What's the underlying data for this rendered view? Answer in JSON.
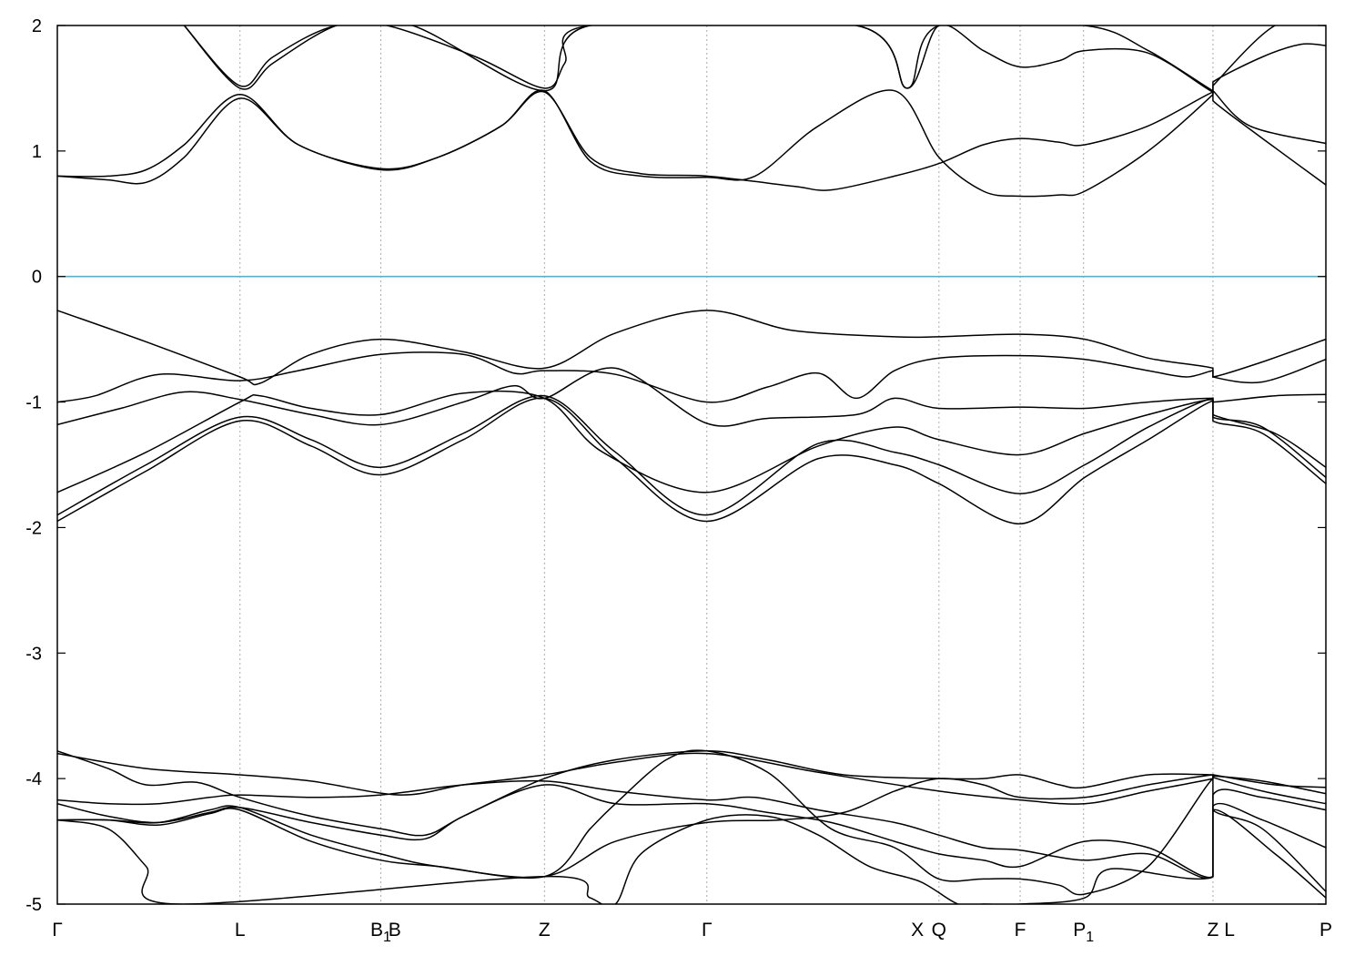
{
  "chart_data": {
    "type": "line",
    "title": "",
    "xlabel": "",
    "ylabel": "",
    "ylim": [
      -5,
      2
    ],
    "yticks": [
      "2",
      "1",
      "0",
      "-1",
      "-2",
      "-3",
      "-4",
      "-5"
    ],
    "xlim": [
      0,
      10
    ],
    "kpath": [
      {
        "label": "Γ",
        "sub": "",
        "x": 0.0,
        "line": false
      },
      {
        "label": "L",
        "sub": "",
        "x": 1.44,
        "line": true
      },
      {
        "label": "B",
        "sub": "1",
        "x": 2.55,
        "line": true
      },
      {
        "label": "B",
        "sub": "",
        "x": 2.66,
        "line": false
      },
      {
        "label": "Z",
        "sub": "",
        "x": 3.84,
        "line": true
      },
      {
        "label": "Γ",
        "sub": "",
        "x": 5.12,
        "line": true
      },
      {
        "label": "X",
        "sub": "",
        "x": 6.78,
        "line": false
      },
      {
        "label": "Q",
        "sub": "",
        "x": 6.95,
        "line": true
      },
      {
        "label": "F",
        "sub": "",
        "x": 7.59,
        "line": true
      },
      {
        "label": "P",
        "sub": "1",
        "x": 8.09,
        "line": true
      },
      {
        "label": "Z",
        "sub": "",
        "x": 9.11,
        "line": true
      },
      {
        "label": "L",
        "sub": "",
        "x": 9.24,
        "line": false
      },
      {
        "label": "P",
        "sub": "",
        "x": 10.0,
        "line": false
      }
    ],
    "fermi_level": 0,
    "colors": {
      "bands": "#000000",
      "fermi": "#5aaec8",
      "kline": "#aaaaaa"
    },
    "series": [
      {
        "band": "c1",
        "x": [
          0,
          0.4,
          0.7,
          1.0,
          1.44,
          1.9,
          2.55,
          3.0,
          3.5,
          3.84,
          4.2,
          4.6,
          5.12,
          5.8,
          6.1,
          6.6,
          6.95,
          7.3,
          7.59,
          7.9,
          8.1,
          8.6,
          9.11,
          9.11,
          9.5,
          10.0
        ],
        "y": [
          0.8,
          0.77,
          0.75,
          0.95,
          1.42,
          1.05,
          0.85,
          0.95,
          1.2,
          1.47,
          0.95,
          0.82,
          0.8,
          0.72,
          0.69,
          0.8,
          0.9,
          1.05,
          1.1,
          1.07,
          1.05,
          1.2,
          1.47,
          1.4,
          1.1,
          0.73
        ]
      },
      {
        "band": "c2",
        "x": [
          0,
          0.4,
          0.7,
          1.0,
          1.44,
          1.9,
          2.55,
          3.0,
          3.5,
          3.84,
          4.2,
          4.6,
          5.12,
          5.5,
          6.0,
          6.6,
          6.95,
          7.3,
          7.59,
          7.9,
          8.1,
          8.6,
          9.11,
          9.11,
          9.4,
          10.0
        ],
        "y": [
          0.8,
          0.8,
          0.85,
          1.05,
          1.45,
          1.05,
          0.86,
          0.95,
          1.2,
          1.48,
          0.92,
          0.8,
          0.79,
          0.8,
          1.2,
          1.48,
          0.95,
          0.68,
          0.64,
          0.65,
          0.68,
          1.0,
          1.45,
          1.48,
          1.2,
          1.06
        ]
      },
      {
        "band": "c3",
        "x": [
          1.0,
          1.44,
          1.7,
          2.2,
          2.6,
          3.3,
          3.84,
          4.0,
          4.2,
          6.3,
          6.7,
          6.95,
          7.3,
          7.59,
          7.9,
          8.1,
          8.6,
          9.11,
          9.11,
          9.5,
          9.8,
          10.0
        ],
        "y": [
          2.0,
          1.5,
          1.7,
          2.0,
          2.0,
          1.75,
          1.5,
          1.7,
          2.0,
          2.0,
          1.5,
          2.0,
          1.8,
          1.67,
          1.72,
          1.8,
          1.78,
          1.47,
          1.55,
          1.75,
          1.85,
          1.84
        ]
      },
      {
        "band": "c4",
        "x": [
          1.0,
          1.44,
          1.7,
          2.2,
          2.8,
          3.84,
          4.2,
          6.3,
          6.7,
          6.95,
          8.1,
          8.6,
          9.11,
          9.11,
          9.6,
          10.0
        ],
        "y": [
          2.0,
          1.52,
          1.75,
          2.0,
          2.0,
          1.48,
          2.0,
          2.0,
          1.5,
          2.0,
          2.0,
          1.8,
          1.48,
          1.52,
          2.0,
          2.0
        ]
      },
      {
        "band": "v1",
        "x": [
          0,
          0.7,
          1.44,
          1.6,
          2.0,
          2.55,
          3.2,
          3.84,
          4.4,
          5.12,
          5.8,
          6.6,
          6.95,
          7.59,
          8.1,
          8.6,
          9.11,
          9.11,
          9.5,
          10.0
        ],
        "y": [
          -0.27,
          -0.52,
          -0.8,
          -0.85,
          -0.62,
          -0.5,
          -0.6,
          -0.73,
          -0.45,
          -0.27,
          -0.43,
          -0.48,
          -0.48,
          -0.46,
          -0.5,
          -0.65,
          -0.73,
          -0.8,
          -0.68,
          -0.5
        ]
      },
      {
        "band": "v2",
        "x": [
          0,
          0.3,
          0.8,
          1.44,
          1.9,
          2.55,
          3.2,
          3.6,
          3.84,
          4.4,
          5.12,
          5.6,
          6.0,
          6.3,
          6.6,
          6.95,
          7.59,
          8.1,
          8.6,
          8.9,
          9.11,
          9.11,
          9.5,
          10.0
        ],
        "y": [
          -1.0,
          -0.95,
          -0.78,
          -0.83,
          -0.75,
          -0.62,
          -0.62,
          -0.77,
          -0.75,
          -0.78,
          -1.0,
          -0.88,
          -0.77,
          -0.97,
          -0.75,
          -0.65,
          -0.63,
          -0.66,
          -0.75,
          -0.8,
          -0.75,
          -0.8,
          -0.84,
          -0.66
        ]
      },
      {
        "band": "v3",
        "x": [
          0,
          0.5,
          1.0,
          1.44,
          2.0,
          2.55,
          3.2,
          3.6,
          3.84,
          4.4,
          5.12,
          5.6,
          6.3,
          6.6,
          6.95,
          7.59,
          8.1,
          8.6,
          9.11,
          9.11,
          9.6,
          10.0
        ],
        "y": [
          -1.18,
          -1.05,
          -0.92,
          -0.98,
          -1.1,
          -1.18,
          -1.0,
          -0.87,
          -0.97,
          -0.73,
          -1.17,
          -1.13,
          -1.1,
          -0.97,
          -1.05,
          -1.04,
          -1.05,
          -1.0,
          -0.97,
          -1.0,
          -0.95,
          -0.94
        ]
      },
      {
        "band": "v4",
        "x": [
          0,
          0.7,
          1.44,
          1.6,
          2.0,
          2.55,
          3.2,
          3.84,
          4.3,
          5.12,
          6.0,
          6.6,
          6.95,
          7.59,
          8.1,
          8.6,
          9.11,
          9.11,
          9.6,
          10.0
        ],
        "y": [
          -1.72,
          -1.4,
          -1.0,
          -0.95,
          -1.05,
          -1.1,
          -0.93,
          -0.97,
          -1.4,
          -1.72,
          -1.35,
          -1.2,
          -1.3,
          -1.42,
          -1.25,
          -1.1,
          -0.98,
          -1.1,
          -1.25,
          -1.52
        ]
      },
      {
        "band": "v5",
        "x": [
          0,
          0.7,
          1.44,
          2.0,
          2.55,
          3.2,
          3.84,
          4.4,
          5.12,
          6.0,
          6.6,
          6.95,
          7.59,
          8.1,
          8.6,
          9.11,
          9.11,
          9.5,
          10.0
        ],
        "y": [
          -1.9,
          -1.5,
          -1.12,
          -1.3,
          -1.52,
          -1.25,
          -0.95,
          -1.4,
          -1.9,
          -1.33,
          -1.4,
          -1.5,
          -1.73,
          -1.5,
          -1.2,
          -0.97,
          -1.12,
          -1.2,
          -1.6
        ]
      },
      {
        "band": "v6",
        "x": [
          0,
          0.7,
          1.44,
          2.0,
          2.55,
          3.2,
          3.84,
          4.4,
          5.12,
          6.0,
          6.6,
          6.95,
          7.59,
          8.1,
          8.6,
          9.11,
          9.11,
          9.5,
          10.0
        ],
        "y": [
          -1.95,
          -1.55,
          -1.15,
          -1.35,
          -1.58,
          -1.3,
          -0.97,
          -1.45,
          -1.95,
          -1.45,
          -1.5,
          -1.65,
          -1.97,
          -1.6,
          -1.3,
          -0.99,
          -1.15,
          -1.25,
          -1.65
        ]
      },
      {
        "band": "d1",
        "x": [
          0,
          0.7,
          1.44,
          2.0,
          2.7,
          3.2,
          3.84,
          4.4,
          5.12,
          6.0,
          6.95,
          7.59,
          8.1,
          8.6,
          9.11,
          9.11,
          9.5,
          10.0
        ],
        "y": [
          -3.8,
          -3.92,
          -3.97,
          -4.02,
          -4.13,
          -4.05,
          -3.97,
          -3.87,
          -3.8,
          -3.95,
          -4.1,
          -4.17,
          -4.2,
          -4.1,
          -4.0,
          -3.98,
          -4.02,
          -4.12
        ]
      },
      {
        "band": "d2",
        "x": [
          0,
          0.4,
          0.7,
          1.1,
          1.44,
          2.0,
          2.55,
          2.9,
          3.2,
          3.84,
          4.4,
          5.12,
          5.6,
          6.2,
          6.95,
          7.3,
          7.59,
          7.9,
          8.1,
          8.6,
          9.11,
          9.11,
          9.6,
          10.0
        ],
        "y": [
          -3.78,
          -3.92,
          -4.05,
          -4.03,
          -4.15,
          -4.3,
          -4.4,
          -4.45,
          -4.3,
          -4.0,
          -3.85,
          -3.78,
          -3.85,
          -3.97,
          -4.0,
          -4.0,
          -3.97,
          -4.05,
          -4.07,
          -3.97,
          -3.97,
          -3.97,
          -4.05,
          -4.07
        ]
      },
      {
        "band": "d3",
        "x": [
          0,
          0.4,
          0.8,
          1.2,
          1.44,
          2.0,
          2.55,
          3.2,
          3.84,
          4.4,
          5.12,
          5.5,
          6.0,
          6.6,
          6.95,
          7.3,
          7.59,
          8.1,
          8.6,
          9.11,
          9.11,
          9.5,
          10.0
        ],
        "y": [
          -4.17,
          -4.2,
          -4.2,
          -4.15,
          -4.13,
          -4.15,
          -4.13,
          -4.05,
          -4.02,
          -4.1,
          -4.17,
          -4.15,
          -4.25,
          -4.35,
          -4.45,
          -4.55,
          -4.57,
          -4.65,
          -4.6,
          -4.78,
          -4.13,
          -4.15,
          -4.25
        ]
      },
      {
        "band": "d4",
        "x": [
          0,
          0.4,
          0.8,
          1.2,
          1.44,
          2.0,
          2.55,
          2.9,
          3.2,
          3.84,
          4.4,
          5.12,
          5.6,
          6.1,
          6.6,
          6.95,
          7.3,
          7.59,
          8.1,
          8.6,
          9.11,
          9.11,
          9.5,
          10.0
        ],
        "y": [
          -4.2,
          -4.3,
          -4.35,
          -4.27,
          -4.23,
          -4.35,
          -4.45,
          -4.48,
          -4.3,
          -4.05,
          -4.2,
          -4.2,
          -4.27,
          -4.35,
          -4.5,
          -4.6,
          -4.65,
          -4.7,
          -4.5,
          -4.55,
          -4.78,
          -4.22,
          -4.33,
          -4.55
        ]
      },
      {
        "band": "d5",
        "x": [
          0,
          0.4,
          0.8,
          1.2,
          1.44,
          2.0,
          2.55,
          3.0,
          3.84,
          4.4,
          5.12,
          5.7,
          6.2,
          6.6,
          6.95,
          7.3,
          7.59,
          8.1,
          8.6,
          9.11,
          9.11,
          9.5,
          10.0
        ],
        "y": [
          -4.33,
          -4.33,
          -4.35,
          -4.25,
          -4.23,
          -4.45,
          -4.6,
          -4.7,
          -4.78,
          -4.5,
          -4.35,
          -4.33,
          -4.27,
          -4.1,
          -4.0,
          -4.05,
          -4.15,
          -4.15,
          -4.05,
          -3.97,
          -3.99,
          -4.1,
          -4.2
        ]
      },
      {
        "band": "d6",
        "x": [
          0,
          0.4,
          0.8,
          1.2,
          1.44,
          2.0,
          2.55,
          3.0,
          3.84,
          4.2,
          4.4,
          4.8,
          5.12,
          5.6,
          6.1,
          6.6,
          6.95,
          7.3,
          7.59,
          7.9,
          8.1,
          8.6,
          9.11,
          9.11,
          9.5,
          10.0
        ],
        "y": [
          -4.33,
          -4.33,
          -4.37,
          -4.28,
          -4.25,
          -4.5,
          -4.65,
          -4.7,
          -4.78,
          -4.4,
          -4.2,
          -3.85,
          -3.78,
          -3.95,
          -4.4,
          -4.55,
          -4.8,
          -4.8,
          -4.8,
          -4.85,
          -4.92,
          -4.7,
          -4.0,
          -4.25,
          -4.4,
          -4.9
        ]
      },
      {
        "band": "d7",
        "x": [
          0,
          0.4,
          0.7,
          0.95,
          3.84,
          4.2,
          4.4,
          4.6,
          5.12,
          5.6,
          6.0,
          6.4,
          6.8,
          7.1,
          7.3,
          7.59,
          8.1,
          8.3,
          9.11,
          9.11,
          9.6,
          10.0
        ],
        "y": [
          -4.33,
          -4.4,
          -4.7,
          -5.0,
          -4.78,
          -4.95,
          -5.0,
          -4.6,
          -4.33,
          -4.3,
          -4.45,
          -4.7,
          -4.82,
          -5.0,
          -5.0,
          -5.0,
          -4.95,
          -4.72,
          -4.78,
          -4.25,
          -4.6,
          -4.95
        ]
      }
    ]
  }
}
